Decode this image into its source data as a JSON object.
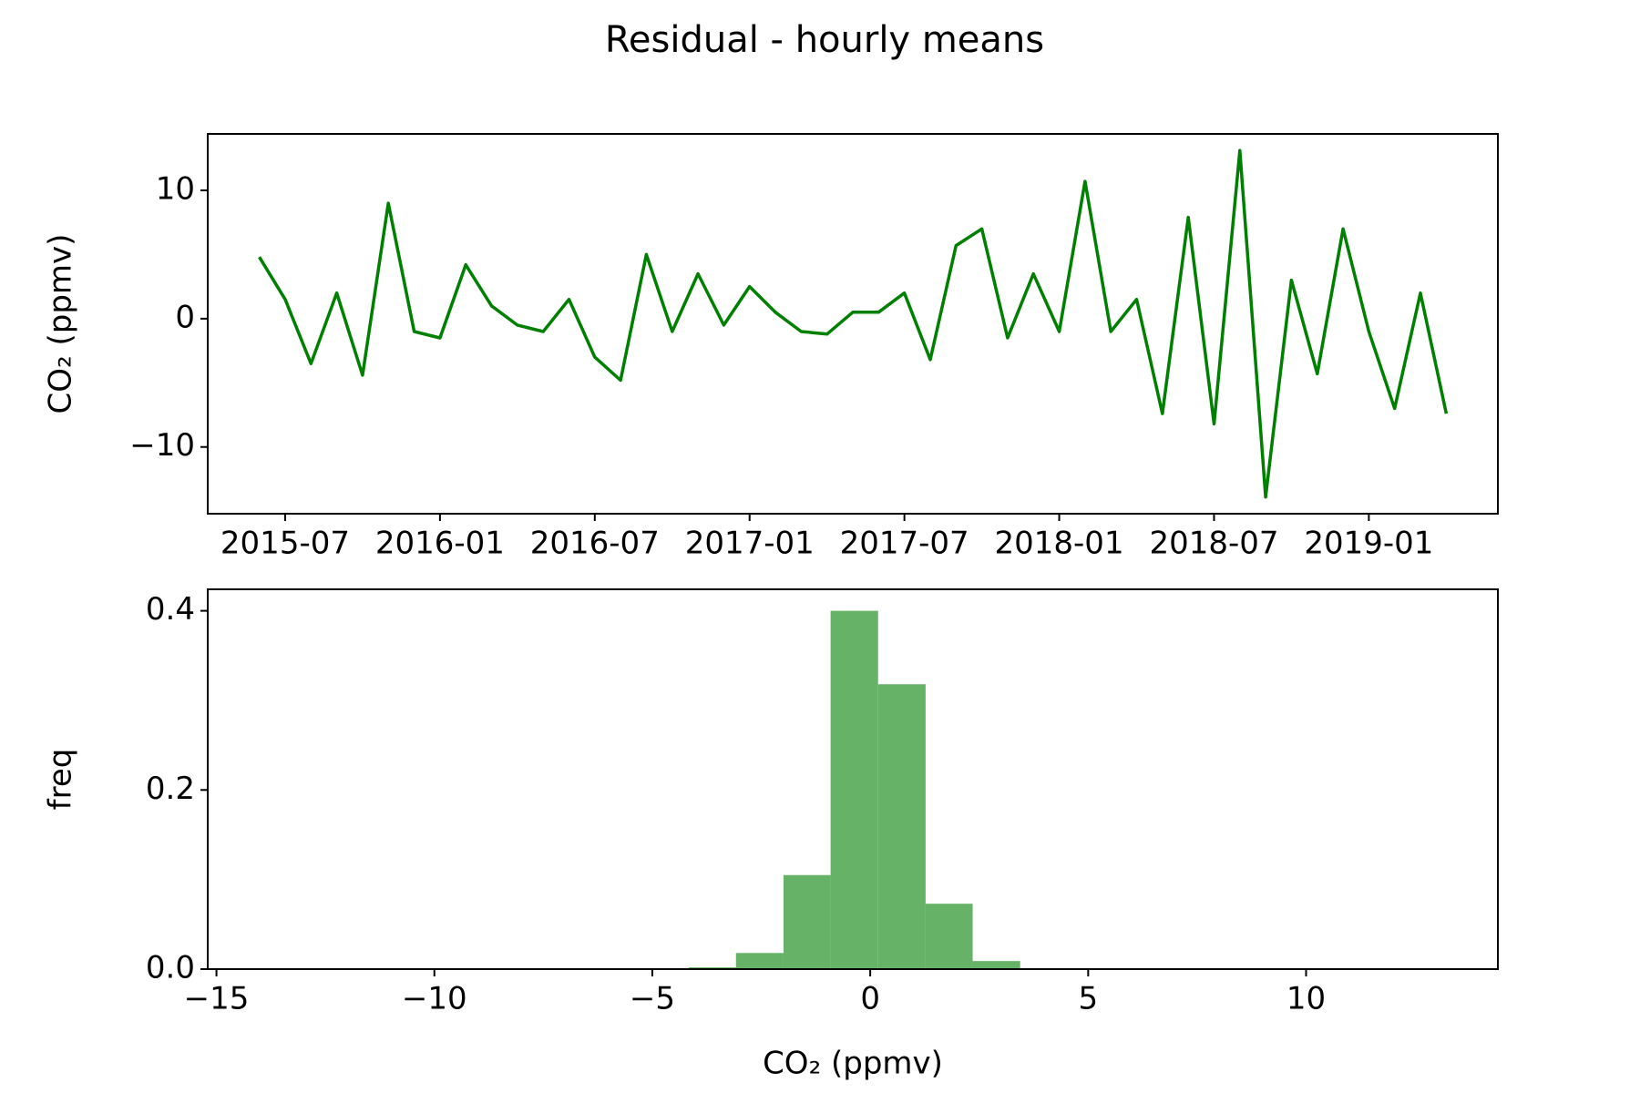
{
  "chart_data": [
    {
      "type": "line",
      "title": "Residual - hourly means",
      "ylabel": "CO₂ (ppmv)",
      "color": "#008000",
      "x": [
        "2015-06",
        "2015-07",
        "2015-08",
        "2015-09",
        "2015-10",
        "2015-11",
        "2015-12",
        "2016-01",
        "2016-02",
        "2016-03",
        "2016-04",
        "2016-05",
        "2016-06",
        "2016-07",
        "2016-08",
        "2016-09",
        "2016-10",
        "2016-11",
        "2016-12",
        "2017-01",
        "2017-02",
        "2017-03",
        "2017-04",
        "2017-05",
        "2017-06",
        "2017-07",
        "2017-08",
        "2017-09",
        "2017-10",
        "2017-11",
        "2017-12",
        "2018-01",
        "2018-02",
        "2018-03",
        "2018-04",
        "2018-05",
        "2018-06",
        "2018-07",
        "2018-08",
        "2018-09",
        "2018-10",
        "2018-11",
        "2018-12",
        "2019-01",
        "2019-02",
        "2019-03",
        "2019-04"
      ],
      "values": [
        4.8,
        1.5,
        -3.5,
        2.0,
        -4.4,
        9.0,
        -1.0,
        -1.5,
        4.2,
        1.0,
        -0.5,
        -1.0,
        1.5,
        -3.0,
        -4.8,
        5.0,
        -1.0,
        3.5,
        -0.5,
        2.5,
        0.5,
        -1.0,
        -1.2,
        0.5,
        0.5,
        2.0,
        -3.2,
        5.7,
        7.0,
        -1.5,
        3.5,
        -1.0,
        10.7,
        -1.0,
        1.5,
        -7.4,
        7.9,
        -8.2,
        13.1,
        -13.9,
        3.0,
        -4.3,
        7.0,
        -1.0,
        -7.0,
        2.0,
        -7.4
      ],
      "xlim": [
        "2015-04",
        "2019-06"
      ],
      "xticks": [
        "2015-07",
        "2016-01",
        "2016-07",
        "2017-01",
        "2017-07",
        "2018-01",
        "2018-07",
        "2019-01"
      ],
      "ylim": [
        -15.2,
        14.4
      ],
      "yticks": [
        {
          "value": -10,
          "label": "−10"
        },
        0,
        10
      ]
    },
    {
      "type": "histogram",
      "xlabel": "CO₂ (ppmv)",
      "ylabel": "freq",
      "color": "#66b266",
      "bins": [
        -13.95,
        -12.86,
        -11.78,
        -10.69,
        -9.6,
        -8.52,
        -7.43,
        -6.34,
        -5.25,
        -4.17,
        -3.08,
        -1.99,
        -0.91,
        0.18,
        1.27,
        2.35,
        3.44,
        4.53,
        5.62,
        6.7,
        7.79,
        8.88,
        9.96,
        11.05,
        12.14,
        13.22
      ],
      "values": [
        0,
        0,
        0,
        0,
        0,
        0,
        0,
        0,
        0,
        0.002,
        0.018,
        0.105,
        0.4,
        0.318,
        0.073,
        0.009,
        0,
        0,
        0,
        0,
        0,
        0,
        0,
        0,
        0
      ],
      "xlim": [
        -15.2,
        14.4
      ],
      "xticks": [
        {
          "value": -15,
          "label": "−15"
        },
        {
          "value": -10,
          "label": "−10"
        },
        {
          "value": -5,
          "label": "−5"
        },
        0,
        5,
        10
      ],
      "ylim": [
        0,
        0.424
      ],
      "yticks": [
        {
          "value": 0,
          "label": "0.0"
        },
        0.2,
        0.4
      ]
    }
  ]
}
